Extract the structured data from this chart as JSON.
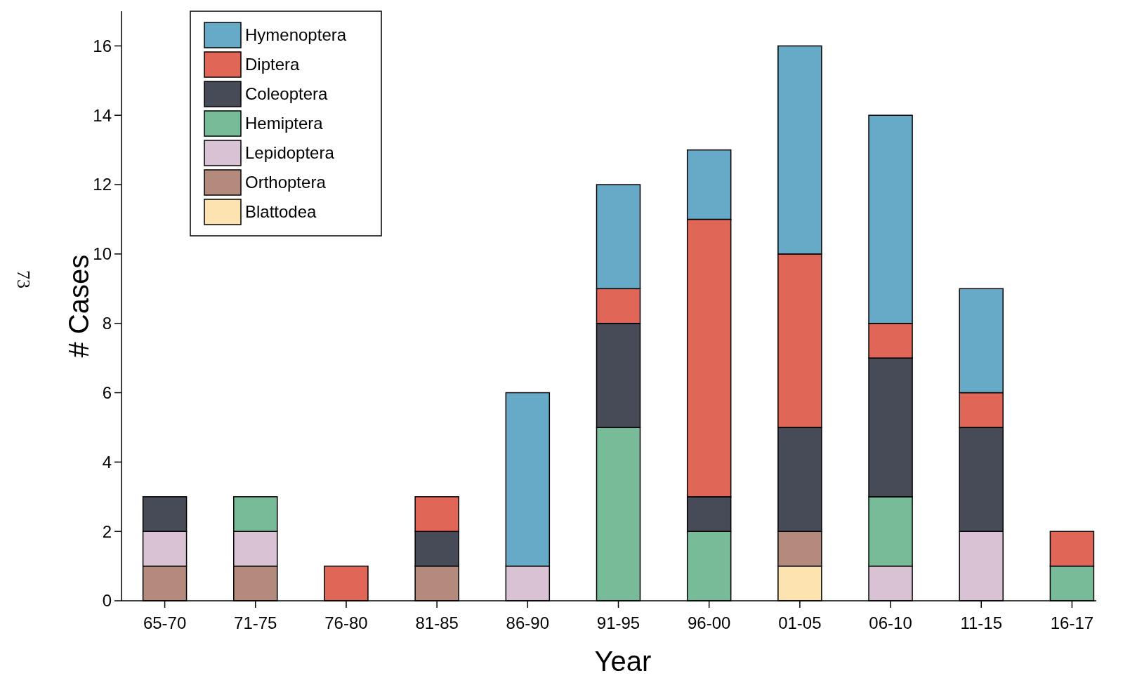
{
  "chart_data": {
    "type": "bar",
    "stacked": true,
    "xlabel": "Year",
    "ylabel": "# Cases",
    "categories": [
      "65-70",
      "71-75",
      "76-80",
      "81-85",
      "86-90",
      "91-95",
      "96-00",
      "01-05",
      "06-10",
      "11-15",
      "16-17"
    ],
    "series": [
      {
        "name": "Blattodea",
        "color": "#fce3b0",
        "values": [
          null,
          null,
          null,
          null,
          null,
          null,
          null,
          1,
          null,
          null,
          null
        ]
      },
      {
        "name": "Orthoptera",
        "color": "#b48a7c",
        "values": [
          1,
          1,
          null,
          1,
          null,
          null,
          null,
          1,
          null,
          null,
          null
        ]
      },
      {
        "name": "Lepidoptera",
        "color": "#d8c2d3",
        "values": [
          1,
          1,
          null,
          null,
          1,
          null,
          null,
          null,
          1,
          2,
          null
        ]
      },
      {
        "name": "Hemiptera",
        "color": "#78bb98",
        "values": [
          null,
          1,
          null,
          null,
          null,
          5,
          2,
          null,
          2,
          null,
          1
        ]
      },
      {
        "name": "Coleoptera",
        "color": "#474b57",
        "values": [
          1,
          null,
          null,
          1,
          null,
          3,
          1,
          3,
          4,
          3,
          null
        ]
      },
      {
        "name": "Diptera",
        "color": "#e06657",
        "values": [
          null,
          null,
          1,
          1,
          null,
          1,
          8,
          5,
          1,
          1,
          1
        ]
      },
      {
        "name": "Hymenoptera",
        "color": "#67aac7",
        "values": [
          null,
          null,
          null,
          null,
          5,
          3,
          2,
          6,
          6,
          3,
          null
        ]
      }
    ],
    "ylim": [
      0,
      17
    ],
    "yticks": [
      0,
      2,
      4,
      6,
      8,
      10,
      12,
      14,
      16
    ],
    "legend": "top left",
    "annotations": [
      "73"
    ]
  }
}
